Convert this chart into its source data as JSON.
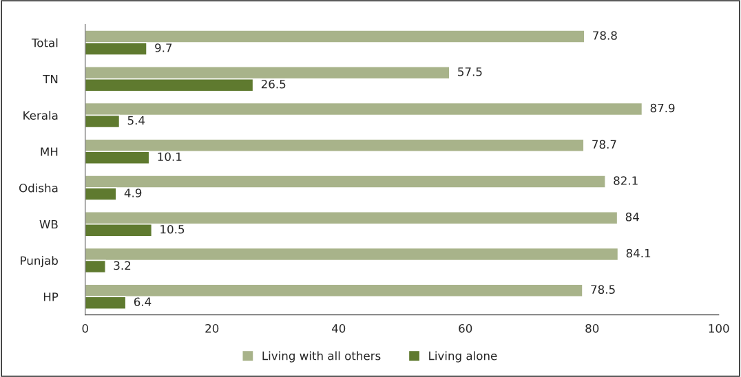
{
  "chart_data": {
    "type": "bar",
    "orientation": "horizontal",
    "categories": [
      "Total",
      "TN",
      "Kerala",
      "MH",
      "Odisha",
      "WB",
      "Punjab",
      "HP"
    ],
    "series": [
      {
        "name": "Living with all others",
        "color": "#a8b38a",
        "values": [
          78.8,
          57.5,
          87.9,
          78.7,
          82.1,
          84,
          84.1,
          78.5
        ]
      },
      {
        "name": "Living alone",
        "color": "#5f7a2f",
        "values": [
          9.7,
          26.5,
          5.4,
          10.1,
          4.9,
          10.5,
          3.2,
          6.4
        ]
      }
    ],
    "xlim": [
      0,
      100
    ],
    "xticks": [
      0,
      20,
      40,
      60,
      80,
      100
    ],
    "data_labels": true,
    "legend": "bottom",
    "grid": false
  }
}
